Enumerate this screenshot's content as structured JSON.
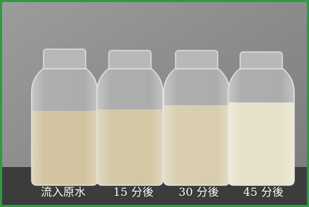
{
  "labels": [
    "流入原水",
    "15 分後",
    "30 分後",
    "45 分後"
  ]
}
